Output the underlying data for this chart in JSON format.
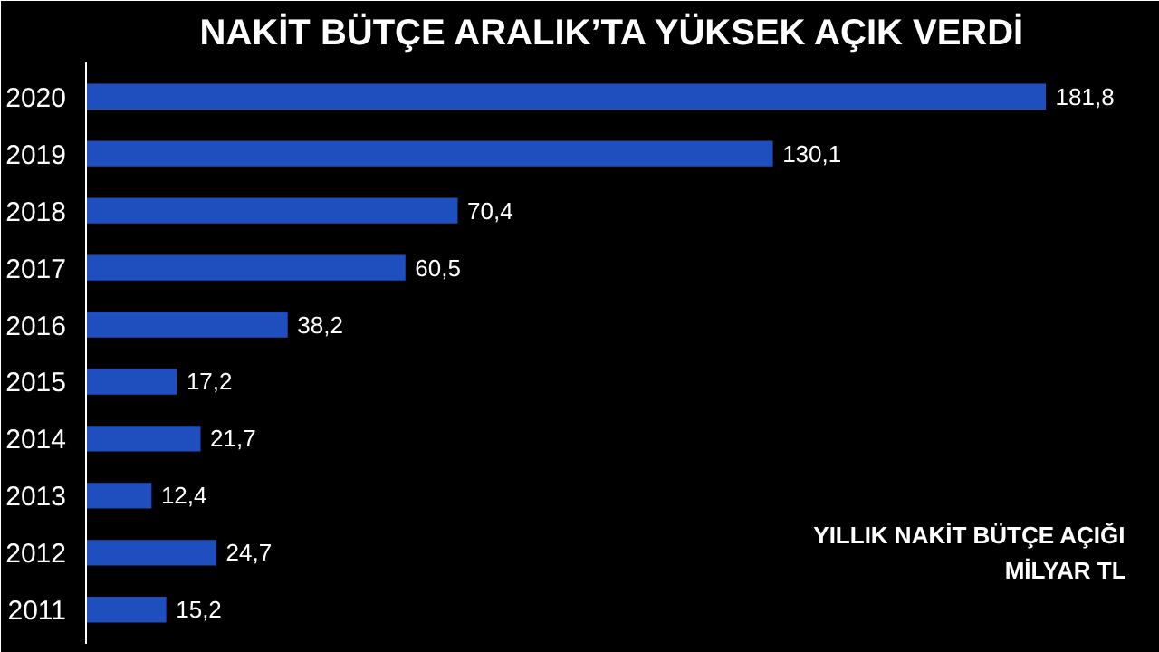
{
  "chart_data": {
    "type": "bar",
    "orientation": "horizontal",
    "title": "NAKİT BÜTÇE ARALIK’TA YÜKSEK AÇIK VERDİ",
    "categories": [
      "2020",
      "2019",
      "2018",
      "2017",
      "2016",
      "2015",
      "2014",
      "2013",
      "2012",
      "2011"
    ],
    "values": [
      181.8,
      130.1,
      70.4,
      60.5,
      38.2,
      17.2,
      21.7,
      12.4,
      24.7,
      15.2
    ],
    "value_labels": [
      "181,8",
      "130,1",
      "70,4",
      "60,5",
      "38,2",
      "17,2",
      "21,7",
      "12,4",
      "24,7",
      "15,2"
    ],
    "color": "#1f4fbf",
    "annotations": [
      "YILLIK NAKİT BÜTÇE AÇIĞI",
      "MİLYAR TL"
    ]
  }
}
